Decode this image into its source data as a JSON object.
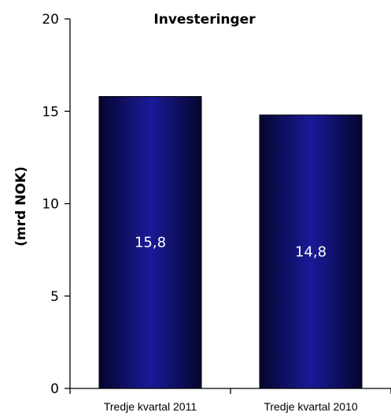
{
  "chart_data": {
    "type": "bar",
    "title": "Investeringer",
    "ylabel": "(mrd NOK)",
    "xlabel": "",
    "categories": [
      "Tredje kvartal 2011",
      "Tredje kvartal 2010"
    ],
    "values": [
      15.8,
      14.8
    ],
    "data_labels": [
      "15,8",
      "14,8"
    ],
    "ylim": [
      0,
      20
    ],
    "yticks": [
      0,
      5,
      10,
      15,
      20
    ],
    "grid": false,
    "legend": "none",
    "colors": {
      "bar_dark": "#05052e",
      "bar_light": "#1a1a99",
      "axis": "#000000"
    }
  }
}
